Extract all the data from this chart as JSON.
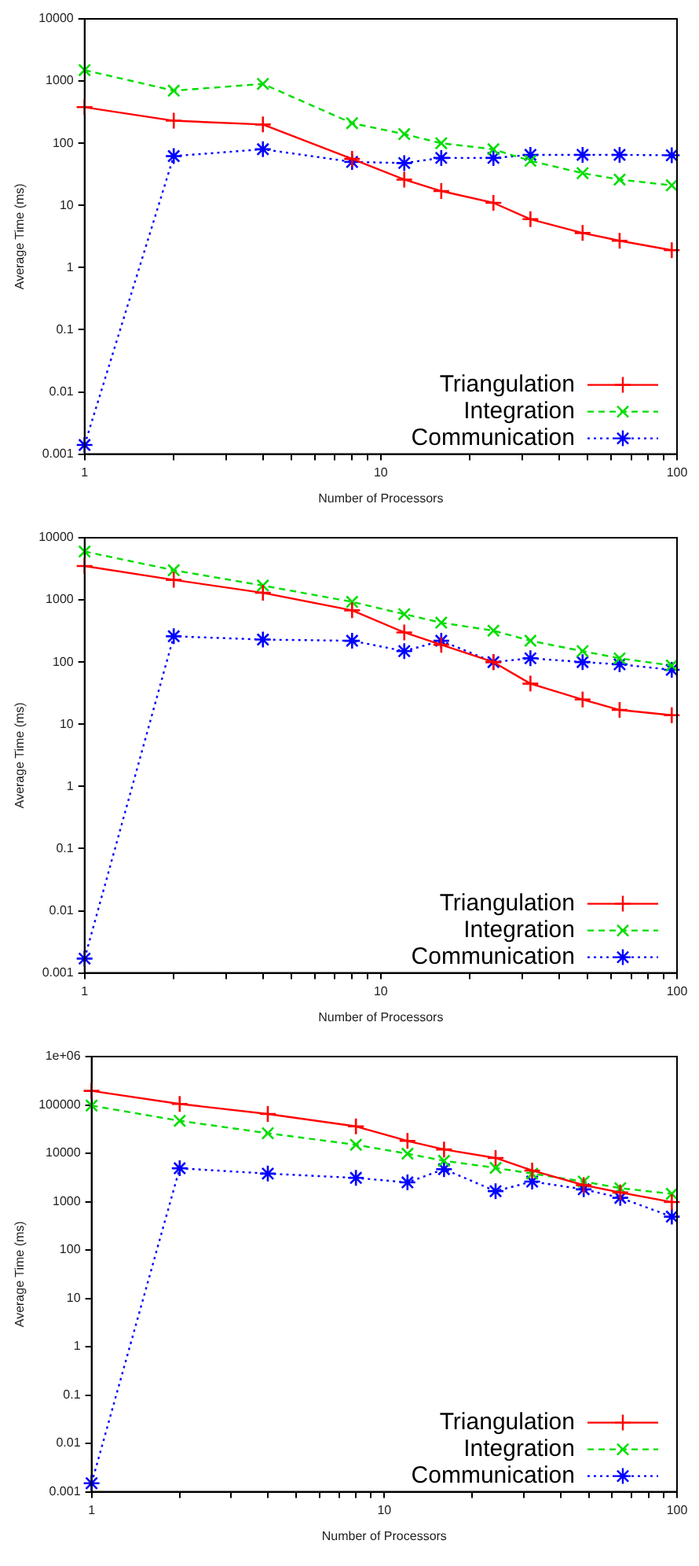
{
  "chart_data": [
    {
      "type": "line",
      "xlabel": "Number of Processors",
      "ylabel": "Average Time (ms)",
      "log": "xy",
      "legend": "bottom right",
      "grid": false,
      "x": [
        1,
        2,
        4,
        8,
        12,
        16,
        24,
        32,
        48,
        64,
        96
      ],
      "xlim": [
        1,
        100
      ],
      "xticks": [
        1,
        {
          "value": 2,
          "label": null
        },
        {
          "value": 3,
          "label": null
        },
        {
          "value": 4,
          "label": null
        },
        {
          "value": 5,
          "label": null
        },
        {
          "value": 6,
          "label": null
        },
        {
          "value": 7,
          "label": null
        },
        {
          "value": 8,
          "label": null
        },
        {
          "value": 9,
          "label": null
        },
        10,
        {
          "value": 20,
          "label": null
        },
        {
          "value": 30,
          "label": null
        },
        {
          "value": 40,
          "label": null
        },
        {
          "value": 50,
          "label": null
        },
        {
          "value": 60,
          "label": null
        },
        {
          "value": 70,
          "label": null
        },
        {
          "value": 80,
          "label": null
        },
        {
          "value": 90,
          "label": null
        },
        100
      ],
      "ylim": [
        0.001,
        10000
      ],
      "yticks": [
        0.001,
        0.01,
        0.1,
        1,
        10,
        100,
        1000,
        10000
      ],
      "series": [
        {
          "name": "Triangulation",
          "color": "#ff0000",
          "marker": "cross",
          "line_style": "solid",
          "values": [
            380,
            230,
            200,
            56,
            26,
            17,
            11,
            6,
            3.6,
            2.7,
            1.9
          ]
        },
        {
          "name": "Integration",
          "color": "#00dd00",
          "marker": "cross",
          "line_style": "dashed",
          "values": [
            1500,
            700,
            900,
            210,
            140,
            100,
            80,
            52,
            33,
            26,
            21
          ]
        },
        {
          "name": "Communication",
          "color": "#0000ff",
          "marker": "cross",
          "line_style": "dotted",
          "values": [
            0.0014,
            62,
            80,
            50,
            48,
            58,
            58,
            65,
            65,
            65,
            64
          ]
        }
      ]
    },
    {
      "type": "line",
      "xlabel": "Number of Processors",
      "ylabel": "Average Time (ms)",
      "log": "xy",
      "legend": "bottom right",
      "grid": false,
      "x": [
        1,
        2,
        4,
        8,
        12,
        16,
        24,
        32,
        48,
        64,
        96
      ],
      "xlim": [
        1,
        100
      ],
      "xticks": [
        1,
        {
          "value": 2,
          "label": null
        },
        {
          "value": 3,
          "label": null
        },
        {
          "value": 4,
          "label": null
        },
        {
          "value": 5,
          "label": null
        },
        {
          "value": 6,
          "label": null
        },
        {
          "value": 7,
          "label": null
        },
        {
          "value": 8,
          "label": null
        },
        {
          "value": 9,
          "label": null
        },
        10,
        {
          "value": 20,
          "label": null
        },
        {
          "value": 30,
          "label": null
        },
        {
          "value": 40,
          "label": null
        },
        {
          "value": 50,
          "label": null
        },
        {
          "value": 60,
          "label": null
        },
        {
          "value": 70,
          "label": null
        },
        {
          "value": 80,
          "label": null
        },
        {
          "value": 90,
          "label": null
        },
        100
      ],
      "ylim": [
        0.001,
        10000
      ],
      "yticks": [
        0.001,
        0.01,
        0.1,
        1,
        10,
        100,
        1000,
        10000
      ],
      "series": [
        {
          "name": "Triangulation",
          "color": "#ff0000",
          "marker": "cross",
          "line_style": "solid",
          "values": [
            3500,
            2100,
            1300,
            680,
            300,
            190,
            100,
            45,
            25,
            17,
            14
          ]
        },
        {
          "name": "Integration",
          "color": "#00dd00",
          "marker": "cross",
          "line_style": "dashed",
          "values": [
            6000,
            3000,
            1700,
            930,
            590,
            430,
            320,
            220,
            150,
            115,
            88
          ]
        },
        {
          "name": "Communication",
          "color": "#0000ff",
          "marker": "cross",
          "line_style": "dotted",
          "values": [
            0.0017,
            260,
            230,
            220,
            150,
            220,
            100,
            115,
            100,
            92,
            75
          ]
        }
      ]
    },
    {
      "type": "line",
      "xlabel": "Number of Processors",
      "ylabel": "Average Time (ms)",
      "log": "xy",
      "legend": "bottom right",
      "grid": false,
      "x": [
        1,
        2,
        4,
        8,
        12,
        16,
        24,
        32,
        48,
        64,
        96
      ],
      "xlim": [
        1,
        100
      ],
      "xticks": [
        1,
        {
          "value": 2,
          "label": null
        },
        {
          "value": 3,
          "label": null
        },
        {
          "value": 4,
          "label": null
        },
        {
          "value": 5,
          "label": null
        },
        {
          "value": 6,
          "label": null
        },
        {
          "value": 7,
          "label": null
        },
        {
          "value": 8,
          "label": null
        },
        {
          "value": 9,
          "label": null
        },
        10,
        {
          "value": 20,
          "label": null
        },
        {
          "value": 30,
          "label": null
        },
        {
          "value": 40,
          "label": null
        },
        {
          "value": 50,
          "label": null
        },
        {
          "value": 60,
          "label": null
        },
        {
          "value": 70,
          "label": null
        },
        {
          "value": 80,
          "label": null
        },
        {
          "value": 90,
          "label": null
        },
        100
      ],
      "ylim": [
        0.001,
        1000000
      ],
      "yticks": [
        0.001,
        0.01,
        0.1,
        1,
        10,
        100,
        1000,
        10000,
        100000,
        {
          "value": 1000000,
          "label": "1e+06"
        }
      ],
      "series": [
        {
          "name": "Triangulation",
          "color": "#ff0000",
          "marker": "cross",
          "line_style": "solid",
          "values": [
            195000,
            105000,
            65000,
            36000,
            18000,
            12000,
            8000,
            4400,
            2200,
            1550,
            980
          ]
        },
        {
          "name": "Integration",
          "color": "#00dd00",
          "marker": "cross",
          "line_style": "dashed",
          "values": [
            97000,
            47000,
            26000,
            15000,
            9800,
            7000,
            5000,
            3800,
            2600,
            1900,
            1450
          ]
        },
        {
          "name": "Communication",
          "color": "#0000ff",
          "marker": "cross",
          "line_style": "dotted",
          "values": [
            0.0015,
            4900,
            3800,
            3100,
            2500,
            4700,
            1650,
            2600,
            1800,
            1200,
            490
          ]
        }
      ]
    }
  ]
}
